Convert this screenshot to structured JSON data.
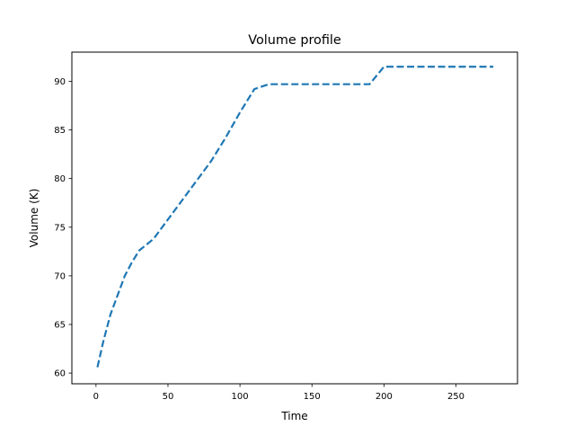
{
  "chart_data": {
    "type": "line",
    "title": "Volume profile",
    "xlabel": "Time",
    "ylabel": "Volume (K)",
    "xlim": [
      -16.75,
      292.75
    ],
    "ylim": [
      58.9,
      93.0
    ],
    "xticks": [
      0,
      50,
      100,
      150,
      200,
      250
    ],
    "yticks": [
      60,
      65,
      70,
      75,
      80,
      85,
      90
    ],
    "grid": false,
    "series": [
      {
        "color": "#1f77b4",
        "style": "dashed",
        "x": [
          1,
          5,
          10,
          15,
          20,
          25,
          30,
          35,
          40,
          50,
          60,
          70,
          80,
          90,
          100,
          110,
          120,
          130,
          140,
          150,
          160,
          170,
          180,
          190,
          200,
          210,
          220,
          230,
          240,
          250,
          260,
          270,
          276
        ],
        "y": [
          60.6,
          63.2,
          66.0,
          68.0,
          70.0,
          71.4,
          72.6,
          73.2,
          73.8,
          75.8,
          77.8,
          79.8,
          81.8,
          84.2,
          86.8,
          89.2,
          89.7,
          89.7,
          89.7,
          89.7,
          89.7,
          89.7,
          89.7,
          89.7,
          91.5,
          91.5,
          91.5,
          91.5,
          91.5,
          91.5,
          91.5,
          91.5,
          91.5
        ]
      }
    ]
  }
}
